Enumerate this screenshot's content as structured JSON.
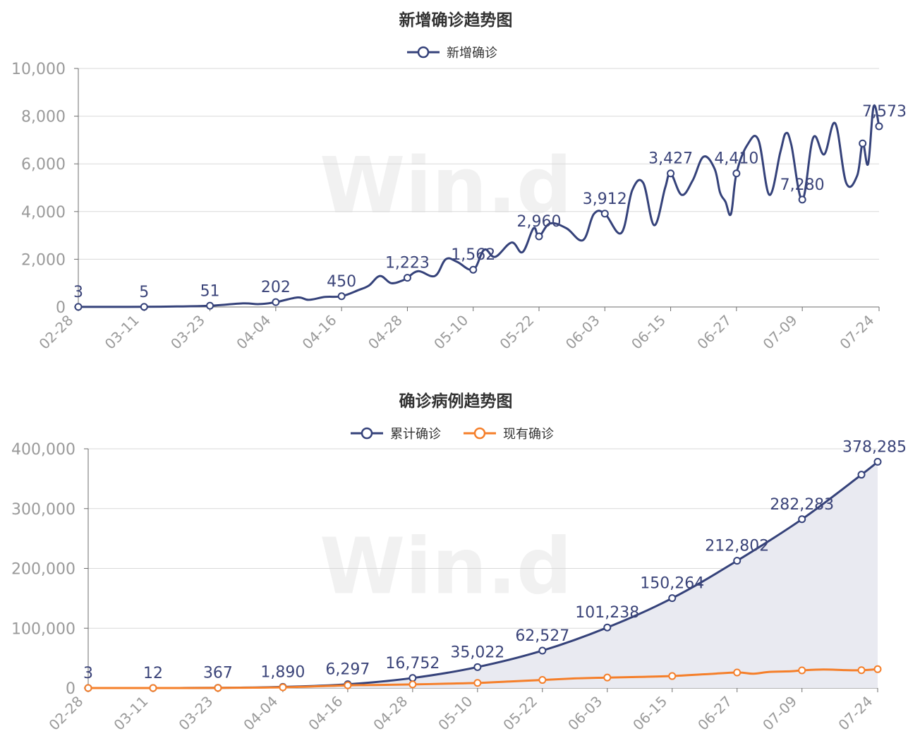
{
  "colors": {
    "series_navy": "#35427a",
    "series_orange": "#f57f2a",
    "area_fill": "#e9eaf1",
    "grid": "#d9d9d9",
    "tick_text": "#9a9a9a",
    "label_text": "#3b4479"
  },
  "watermark": "Win.d",
  "chart_data": [
    {
      "type": "line",
      "title": "新增确诊趋势图",
      "xlabel": "",
      "ylabel": "",
      "legend_position": "top-center",
      "grid": true,
      "ylim": [
        0,
        10000
      ],
      "yticks": [
        0,
        2000,
        4000,
        6000,
        8000,
        10000
      ],
      "ytick_labels": [
        "0",
        "2,000",
        "4,000",
        "6,000",
        "8,000",
        "10,000"
      ],
      "x_range": [
        0,
        146
      ],
      "xticks": [
        0,
        12,
        24,
        36,
        48,
        60,
        72,
        84,
        96,
        108,
        120,
        132,
        146
      ],
      "xtick_labels": [
        "02-28",
        "03-11",
        "03-23",
        "04-04",
        "04-16",
        "04-28",
        "05-10",
        "05-22",
        "06-03",
        "06-15",
        "06-27",
        "07-09",
        "07-24"
      ],
      "series": [
        {
          "name": "新增确诊",
          "color": "#35427a",
          "x": [
            0,
            6,
            12,
            18,
            24,
            30,
            33,
            36,
            40,
            42,
            45,
            48,
            51,
            53,
            55,
            57,
            59,
            60,
            62,
            65,
            67,
            69,
            72,
            74,
            76,
            79,
            81,
            83,
            84,
            86,
            89,
            92,
            94,
            96,
            99,
            101,
            103,
            105,
            107,
            108,
            110,
            112,
            114,
            116,
            117,
            118,
            119,
            120,
            122,
            124,
            126,
            128,
            129,
            130,
            132,
            134,
            136,
            138,
            140,
            142,
            143,
            144,
            145,
            146
          ],
          "y": [
            3,
            4,
            5,
            20,
            51,
            150,
            120,
            202,
            400,
            300,
            420,
            450,
            700,
            900,
            1300,
            1000,
            1100,
            1223,
            1500,
            1300,
            2000,
            1900,
            1562,
            2400,
            2100,
            2700,
            2300,
            3300,
            2960,
            3500,
            3300,
            2800,
            3900,
            3912,
            3100,
            4900,
            5200,
            3427,
            5000,
            5600,
            4700,
            5300,
            6300,
            5800,
            4800,
            4410,
            3900,
            5600,
            6800,
            7000,
            4700,
            6500,
            7280,
            6800,
            4500,
            7100,
            6400,
            7700,
            5200,
            5500,
            6857,
            6000,
            8400,
            7573
          ],
          "marked_points": [
            {
              "x": 0,
              "label": "3"
            },
            {
              "x": 12,
              "label": "5"
            },
            {
              "x": 24,
              "label": "51"
            },
            {
              "x": 36,
              "label": "202"
            },
            {
              "x": 48,
              "label": "450"
            },
            {
              "x": 60,
              "label": "1,223"
            },
            {
              "x": 72,
              "label": "1,562"
            },
            {
              "x": 84,
              "label": "2,960"
            },
            {
              "x": 96,
              "label": "3,912"
            },
            {
              "x": 108,
              "label": "3,427"
            },
            {
              "x": 120,
              "label": "4,410"
            },
            {
              "x": 132,
              "label": "7,280"
            },
            {
              "x": 143,
              "label": ""
            },
            {
              "x": 146,
              "label": "7,573"
            }
          ]
        }
      ]
    },
    {
      "type": "area",
      "title": "确诊病例趋势图",
      "xlabel": "",
      "ylabel": "",
      "legend_position": "top-center",
      "grid": true,
      "ylim": [
        0,
        400000
      ],
      "yticks": [
        0,
        100000,
        200000,
        300000,
        400000
      ],
      "ytick_labels": [
        "0",
        "100,000",
        "200,000",
        "300,000",
        "400,000"
      ],
      "x_range": [
        0,
        146
      ],
      "xticks": [
        0,
        12,
        24,
        36,
        48,
        60,
        72,
        84,
        96,
        108,
        120,
        132,
        146
      ],
      "xtick_labels": [
        "02-28",
        "03-11",
        "03-23",
        "04-04",
        "04-16",
        "04-28",
        "05-10",
        "05-22",
        "06-03",
        "06-15",
        "06-27",
        "07-09",
        "07-24"
      ],
      "series": [
        {
          "name": "累计确诊",
          "color": "#35427a",
          "filled": true,
          "x": [
            0,
            12,
            24,
            36,
            48,
            60,
            72,
            84,
            96,
            108,
            120,
            132,
            143,
            146
          ],
          "y": [
            3,
            12,
            367,
            1890,
            6297,
            16752,
            35022,
            62527,
            101238,
            150264,
            212802,
            282283,
            356712,
            378285
          ],
          "labels": [
            "3",
            "12",
            "367",
            "1,890",
            "6,297",
            "16,752",
            "35,022",
            "62,527",
            "101,238",
            "150,264",
            "212,802",
            "282,283",
            "",
            "378,285"
          ]
        },
        {
          "name": "现有确诊",
          "color": "#f57f2a",
          "filled": false,
          "x": [
            0,
            12,
            24,
            36,
            48,
            54,
            60,
            66,
            72,
            78,
            84,
            90,
            96,
            102,
            108,
            114,
            120,
            123,
            126,
            130,
            132,
            136,
            140,
            143,
            146
          ],
          "y": [
            3,
            12,
            200,
            1200,
            4500,
            5200,
            6000,
            7200,
            8500,
            11000,
            13500,
            16000,
            17500,
            18500,
            20000,
            23000,
            26000,
            24000,
            27000,
            28000,
            29500,
            31000,
            30000,
            29800,
            31500
          ],
          "marked_x": [
            0,
            12,
            24,
            36,
            48,
            60,
            72,
            84,
            96,
            108,
            120,
            132,
            143,
            146
          ]
        }
      ]
    }
  ]
}
